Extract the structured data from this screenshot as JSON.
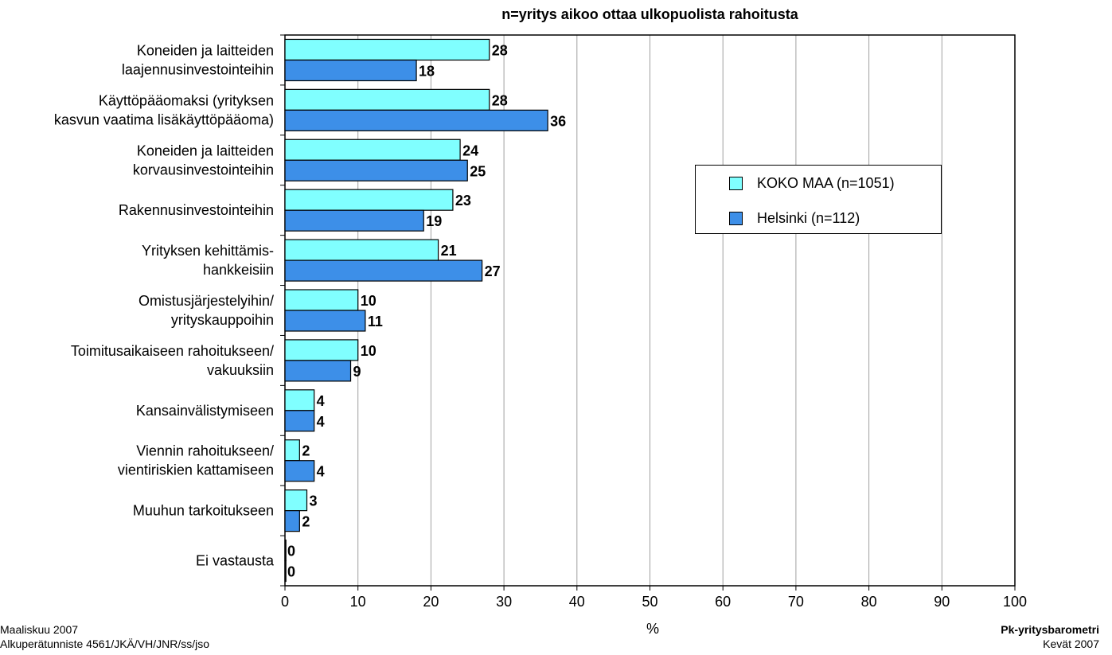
{
  "chart_data": {
    "type": "bar",
    "orientation": "horizontal",
    "subtitle": "n=yritys aikoo ottaa ulkopuolista rahoitusta",
    "categories": [
      [
        "Koneiden ja laitteiden",
        "laajennusinvestointeihin"
      ],
      [
        "Käyttöpääomaksi (yrityksen",
        "kasvun vaatima lisäkäyttöpääoma)"
      ],
      [
        "Koneiden ja laitteiden",
        "korvausinvestointeihin"
      ],
      [
        "Rakennusinvestointeihin"
      ],
      [
        "Yrityksen kehittämis-",
        "hankkeisiin"
      ],
      [
        "Omistusjärjestelyihin/",
        "yrityskauppoihin"
      ],
      [
        "Toimitusaikaiseen rahoitukseen/",
        "vakuuksiin"
      ],
      [
        "Kansainvälistymiseen"
      ],
      [
        "Viennin rahoitukseen/",
        "vientiriskien kattamiseen"
      ],
      [
        "Muuhun tarkoitukseen"
      ],
      [
        "Ei vastausta"
      ]
    ],
    "series": [
      {
        "name": "KOKO MAA (n=1051)",
        "color": "#80ffff",
        "values": [
          28,
          28,
          24,
          23,
          21,
          10,
          10,
          4,
          2,
          3,
          0
        ]
      },
      {
        "name": "Helsinki (n=112)",
        "color": "#3d8fe8",
        "values": [
          18,
          36,
          25,
          19,
          27,
          11,
          9,
          4,
          4,
          2,
          0
        ]
      }
    ],
    "xlim": [
      0,
      100
    ],
    "xticks": [
      0,
      10,
      20,
      30,
      40,
      50,
      60,
      70,
      80,
      90,
      100
    ],
    "xlabel": "%",
    "grid": true,
    "legend_position": "right-center"
  },
  "footer": {
    "left_line1": "Maaliskuu 2007",
    "left_line2": "Alkuperätunniste 4561/JKÄ/VH/JNR/ss/jso",
    "right_line1": "Pk-yritysbarometri",
    "right_line2": "Kevät 2007"
  }
}
